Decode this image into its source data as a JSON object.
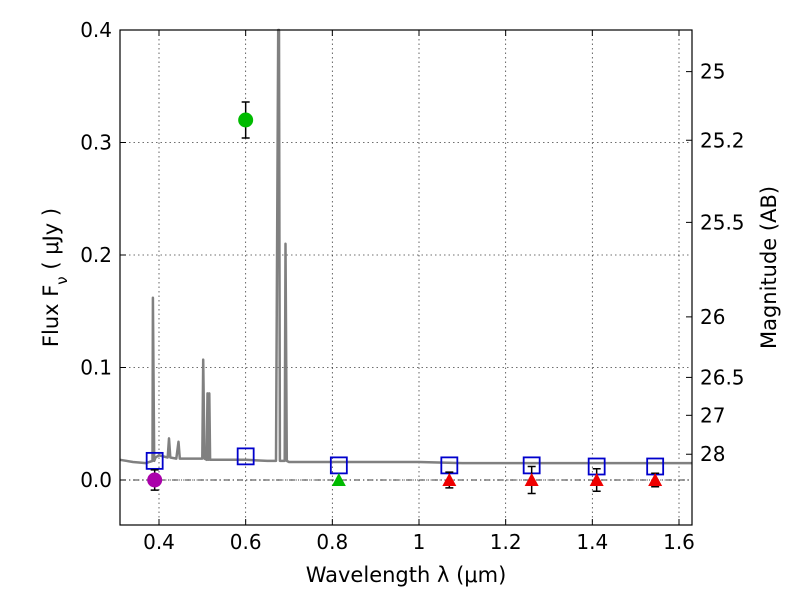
{
  "chart_data": {
    "type": "scatter",
    "title": "",
    "xlabel": "Wavelength  λ (μm)",
    "ylabel": "Flux  F_ν  ( μJy )",
    "y2label": "Magnitude (AB)",
    "xlim": [
      0.31,
      1.63
    ],
    "ylim": [
      -0.04,
      0.4
    ],
    "grid": true,
    "x_ticks": [
      0.4,
      0.6,
      0.8,
      1.0,
      1.2,
      1.4,
      1.6
    ],
    "x_tick_labels": [
      "0.4",
      "0.6",
      "0.8",
      "1",
      "1.2",
      "1.4",
      "1.6"
    ],
    "y_ticks": [
      0.0,
      0.1,
      0.2,
      0.3,
      0.4
    ],
    "y_tick_labels": [
      "0.0",
      "0.1",
      "0.2",
      "0.3",
      "0.4"
    ],
    "y2_ticks": [
      {
        "label": "25",
        "flux": 0.363
      },
      {
        "label": "25.2",
        "flux": 0.302
      },
      {
        "label": "25.5",
        "flux": 0.229
      },
      {
        "label": "26",
        "flux": 0.145
      },
      {
        "label": "26.5",
        "flux": 0.0912
      },
      {
        "label": "27",
        "flux": 0.0575
      },
      {
        "label": "28",
        "flux": 0.0229
      }
    ],
    "colors": {
      "spectrum": "#808080",
      "model": "#0000cc",
      "magenta": "#aa00aa",
      "green": "#00bb00",
      "red": "#ee0000",
      "errorbar": "#000000"
    },
    "series": [
      {
        "name": "model-spectrum",
        "kind": "line",
        "x": [
          0.31,
          0.34,
          0.37,
          0.385,
          0.386,
          0.389,
          0.392,
          0.4,
          0.42,
          0.423,
          0.426,
          0.44,
          0.445,
          0.448,
          0.46,
          0.5,
          0.502,
          0.505,
          0.51,
          0.512,
          0.514,
          0.516,
          0.518,
          0.52,
          0.55,
          0.6,
          0.65,
          0.67,
          0.675,
          0.677,
          0.679,
          0.69,
          0.692,
          0.695,
          0.7,
          0.75,
          0.8,
          0.85,
          0.9,
          0.95,
          1.0,
          1.1,
          1.2,
          1.3,
          1.4,
          1.5,
          1.63
        ],
        "y": [
          0.018,
          0.016,
          0.015,
          0.017,
          0.162,
          0.017,
          0.02,
          0.022,
          0.02,
          0.037,
          0.02,
          0.019,
          0.034,
          0.019,
          0.019,
          0.019,
          0.107,
          0.019,
          0.018,
          0.077,
          0.018,
          0.077,
          0.018,
          0.018,
          0.018,
          0.018,
          0.017,
          0.017,
          0.4,
          0.4,
          0.017,
          0.017,
          0.21,
          0.017,
          0.016,
          0.016,
          0.016,
          0.016,
          0.016,
          0.016,
          0.016,
          0.015,
          0.015,
          0.015,
          0.015,
          0.015,
          0.015
        ]
      },
      {
        "name": "model-photometry",
        "kind": "open-square",
        "color": "#0000cc",
        "x": [
          0.39,
          0.6,
          0.815,
          1.07,
          1.26,
          1.41,
          1.545
        ],
        "y": [
          0.017,
          0.021,
          0.013,
          0.013,
          0.013,
          0.012,
          0.012
        ]
      },
      {
        "name": "detection-magenta",
        "kind": "circle",
        "color": "#aa00aa",
        "x": [
          0.39
        ],
        "y": [
          0.0
        ],
        "err": [
          0.009
        ]
      },
      {
        "name": "detection-green",
        "kind": "circle",
        "color": "#00bb00",
        "x": [
          0.6
        ],
        "y": [
          0.32
        ],
        "err": [
          0.016
        ]
      },
      {
        "name": "upper-limit-green",
        "kind": "triangle",
        "color": "#00bb00",
        "x": [
          0.815
        ],
        "y": [
          0.0
        ],
        "err": [
          0
        ]
      },
      {
        "name": "upper-limit-red",
        "kind": "triangle",
        "color": "#ee0000",
        "x": [
          1.07,
          1.26,
          1.41,
          1.545
        ],
        "y": [
          0.0,
          0.0,
          0.0,
          0.0
        ],
        "err": [
          0.007,
          0.012,
          0.01,
          0.006
        ]
      }
    ]
  }
}
